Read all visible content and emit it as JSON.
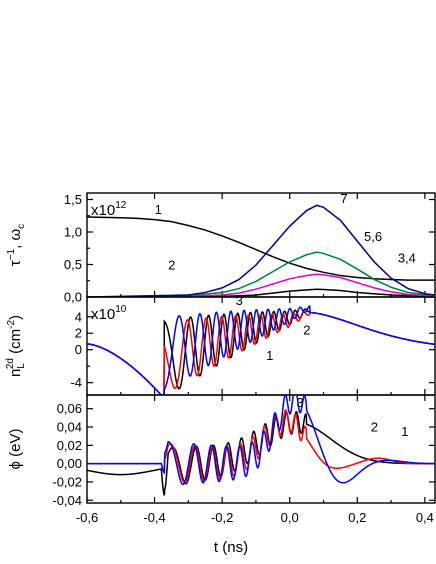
{
  "chart_data": [
    {
      "id": "rates",
      "type": "line",
      "ylabel": "τ⁻¹, ω_c",
      "ylabel_parts": {
        "tau": "τ",
        "minus1": "−1",
        "sep": ", ω",
        "sub": "c"
      },
      "multiplier": {
        "text": "x10",
        "exp": "12"
      },
      "ylim": [
        0,
        1.6
      ],
      "yticks": [
        "0,0",
        "0,5",
        "1,0",
        "1,5"
      ],
      "yticks_minor": [
        0.25,
        0.75,
        1.25
      ],
      "ytick_values": [
        0,
        0.5,
        1.0,
        1.5
      ],
      "series": [
        {
          "name": "1",
          "color": "#000000",
          "x": [
            -0.6,
            -0.5,
            -0.45,
            -0.4,
            -0.35,
            -0.3,
            -0.25,
            -0.2,
            -0.15,
            -0.1,
            -0.05,
            0.0,
            0.05,
            0.1,
            0.15,
            0.2,
            0.25,
            0.3,
            0.35,
            0.43
          ],
          "y": [
            1.23,
            1.22,
            1.21,
            1.19,
            1.16,
            1.1,
            1.03,
            0.94,
            0.84,
            0.73,
            0.62,
            0.52,
            0.44,
            0.38,
            0.33,
            0.3,
            0.28,
            0.27,
            0.26,
            0.26
          ]
        },
        {
          "name": "2",
          "color": "#000000",
          "x": [
            -0.6,
            -0.3,
            -0.2,
            -0.1,
            -0.05,
            0.0,
            0.05,
            0.08,
            0.1,
            0.15,
            0.2,
            0.3,
            0.43
          ],
          "y": [
            0,
            0,
            0.01,
            0.03,
            0.06,
            0.09,
            0.11,
            0.12,
            0.115,
            0.1,
            0.07,
            0.03,
            0.01
          ]
        },
        {
          "name": "3,4",
          "color": "#e000c0",
          "x": [
            -0.6,
            -0.3,
            -0.2,
            -0.15,
            -0.1,
            -0.05,
            0.0,
            0.05,
            0.08,
            0.1,
            0.15,
            0.2,
            0.25,
            0.3,
            0.35,
            0.43
          ],
          "y": [
            0,
            0.01,
            0.03,
            0.06,
            0.12,
            0.2,
            0.28,
            0.33,
            0.35,
            0.34,
            0.3,
            0.22,
            0.14,
            0.08,
            0.04,
            0.01
          ]
        },
        {
          "name": "5,6",
          "color": "#008040",
          "x": [
            -0.6,
            -0.3,
            -0.2,
            -0.15,
            -0.1,
            -0.05,
            0.0,
            0.05,
            0.08,
            0.1,
            0.15,
            0.2,
            0.25,
            0.3,
            0.35,
            0.43
          ],
          "y": [
            0,
            0.02,
            0.07,
            0.13,
            0.24,
            0.39,
            0.54,
            0.65,
            0.69,
            0.67,
            0.58,
            0.43,
            0.27,
            0.15,
            0.07,
            0.02
          ]
        },
        {
          "name": "7",
          "color": "#000080",
          "x": [
            -0.6,
            -0.3,
            -0.25,
            -0.2,
            -0.15,
            -0.1,
            -0.05,
            0.0,
            0.05,
            0.08,
            0.1,
            0.15,
            0.2,
            0.25,
            0.3,
            0.35,
            0.4,
            0.43
          ],
          "y": [
            0,
            0.03,
            0.07,
            0.14,
            0.27,
            0.49,
            0.79,
            1.09,
            1.33,
            1.41,
            1.38,
            1.18,
            0.86,
            0.54,
            0.29,
            0.13,
            0.05,
            0.03
          ]
        }
      ],
      "labels": [
        {
          "text": "1",
          "x": -0.4,
          "y": 1.28
        },
        {
          "text": "7",
          "x": 0.15,
          "y": 1.45
        },
        {
          "text": "5,6",
          "x": 0.22,
          "y": 0.86
        },
        {
          "text": "3,4",
          "x": 0.32,
          "y": 0.53
        },
        {
          "text": "2",
          "x": -0.36,
          "y": 0.42
        }
      ]
    },
    {
      "id": "density",
      "type": "line",
      "ylabel": "n_L^2d (cm⁻²)",
      "ylabel_parts": {
        "n": "n",
        "sub": "L",
        "sup": "2d",
        "unit": " (cm",
        "unit_sup": "-2",
        "close": ")"
      },
      "multiplier": {
        "text": "x10",
        "exp": "10"
      },
      "ylim": [
        -5.5,
        6.4
      ],
      "yticks": [
        "-4",
        "0",
        "2",
        "4"
      ],
      "ytick_values": [
        -4,
        0,
        2,
        4
      ],
      "yticks_minor": [
        -2
      ],
      "series": [
        {
          "name": "1",
          "color": "#000000"
        },
        {
          "name": "2",
          "color": "#ff0000"
        },
        {
          "name": "3",
          "color": "#0000ff"
        }
      ],
      "labels": [
        {
          "text": "3",
          "x": -0.16,
          "y": 5.45
        },
        {
          "text": "2",
          "x": 0.04,
          "y": 1.85
        },
        {
          "text": "1",
          "x": -0.07,
          "y": -1.25
        }
      ]
    },
    {
      "id": "potential",
      "type": "line",
      "ylabel": "ϕ (eV)",
      "ylim": [
        -0.043,
        0.075
      ],
      "yticks": [
        "-0,04",
        "-0,02",
        "0,00",
        "0,02",
        "0,04",
        "0,06"
      ],
      "ytick_values": [
        -0.04,
        -0.02,
        0.0,
        0.02,
        0.04,
        0.06
      ],
      "series": [
        {
          "name": "1",
          "color": "#000000"
        },
        {
          "name": "2",
          "color": "#ff0000"
        },
        {
          "name": "3",
          "color": "#0000ff"
        }
      ],
      "labels": [
        {
          "text": "3",
          "x": 0.02,
          "y": 0.062
        },
        {
          "text": "2",
          "x": 0.24,
          "y": 0.035
        },
        {
          "text": "1",
          "x": 0.33,
          "y": 0.03
        }
      ]
    }
  ],
  "x_axis": {
    "label": "t (ns)",
    "xlim": [
      -0.6,
      0.43
    ],
    "ticks": [
      "-0,6",
      "-0,4",
      "-0,2",
      "0,0",
      "0,2",
      "0,4"
    ],
    "tick_values": [
      -0.6,
      -0.4,
      -0.2,
      0.0,
      0.2,
      0.4
    ],
    "minor": [
      -0.5,
      -0.3,
      -0.1,
      0.1,
      0.3
    ]
  }
}
